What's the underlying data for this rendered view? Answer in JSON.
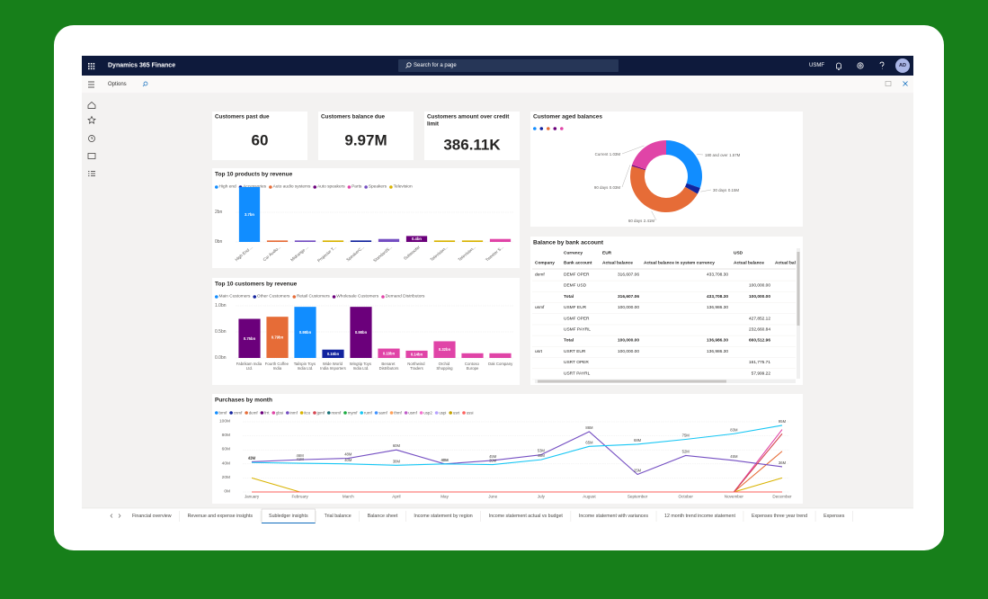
{
  "app": {
    "title": "Dynamics 365 Finance",
    "search": "Search for a page",
    "company": "USMF",
    "avatar": "AD",
    "page": "Options"
  },
  "kpis": [
    {
      "label": "Customers past due",
      "value": "60"
    },
    {
      "label": "Customers balance due",
      "value": "9.97M"
    },
    {
      "label": "Customers amount over credit limit",
      "value": "386.11K"
    }
  ],
  "products": {
    "type": "bar",
    "title": "Top 10 products by revenue",
    "legend": [
      {
        "name": "High end",
        "color": "#118dff"
      },
      {
        "name": "Accessories",
        "color": "#12239e"
      },
      {
        "name": "Auto audio systems",
        "color": "#e66c37"
      },
      {
        "name": "Auto speakers",
        "color": "#6b007b"
      },
      {
        "name": "Parts",
        "color": "#e044a7"
      },
      {
        "name": "Speakers",
        "color": "#744ec2"
      },
      {
        "name": "Television",
        "color": "#d9b300"
      }
    ],
    "categories": [
      "High End ...",
      "Car Audio...",
      "Midrange ...",
      "Projector T...",
      "SpeakerC...",
      "StandardS...",
      "Subwoofer",
      "Television...",
      "Television...",
      "Tweeter S..."
    ],
    "values": [
      3.7,
      0.1,
      0.1,
      0.1,
      0.1,
      0.2,
      0.4,
      0.1,
      0.1,
      0.2
    ],
    "value_labels": [
      "3.7bn",
      null,
      null,
      null,
      null,
      null,
      "0.4bn",
      null,
      null,
      null
    ],
    "colors": [
      "#118dff",
      "#e66c37",
      "#744ec2",
      "#d9b300",
      "#12239e",
      "#744ec2",
      "#6b007b",
      "#d9b300",
      "#d9b300",
      "#e044a7"
    ],
    "ylim": [
      0,
      4
    ],
    "yticks": [
      {
        "value": 0,
        "label": "0bn"
      },
      {
        "value": 2,
        "label": "2bn"
      }
    ],
    "label_rotation": true
  },
  "customers": {
    "type": "bar",
    "title": "Top 10 customers by revenue",
    "legend": [
      {
        "name": "Main Customers",
        "color": "#118dff"
      },
      {
        "name": "Other Customers",
        "color": "#12239e"
      },
      {
        "name": "Retail Customers",
        "color": "#e66c37"
      },
      {
        "name": "Wholesale Customers",
        "color": "#6b007b"
      },
      {
        "name": "Demand Distributors",
        "color": "#e044a7"
      }
    ],
    "categories": [
      "Fabrikam India Ltd.",
      "Fourth Coffee India",
      "Tailspin Toys India Ltd.",
      "Wide World India Importers",
      "Wingtip Toys India Ltd.",
      "Benaret Distributors",
      "Northwind Traders",
      "Orchid Shopping",
      "Contoso Europe",
      "Oak Company"
    ],
    "values": [
      0.75,
      0.79,
      0.98,
      0.16,
      0.98,
      0.18,
      0.14,
      0.32,
      0.09,
      0.09
    ],
    "value_labels": [
      "0.75bn",
      "0.79bn",
      "0.98bn",
      "0.16bn",
      "0.98bn",
      "0.18bn",
      "0.14bn",
      "0.32bn",
      null,
      null
    ],
    "colors": [
      "#6b007b",
      "#e66c37",
      "#118dff",
      "#12239e",
      "#6b007b",
      "#e044a7",
      "#e044a7",
      "#e044a7",
      "#e044a7",
      "#e044a7"
    ],
    "ylim": [
      0,
      1
    ],
    "yticks": [
      {
        "value": 0,
        "label": "0.0bn"
      },
      {
        "value": 0.5,
        "label": "0.5bn"
      },
      {
        "value": 1,
        "label": "1.0bn"
      }
    ],
    "label_rotation": false
  },
  "aged": {
    "type": "donut",
    "title": "Customer aged balances",
    "categories": [
      "180 and over",
      "30 days",
      "60 days",
      "90 days",
      "Current"
    ],
    "values": [
      1.57,
      0.15,
      2.41,
      0.03,
      1.03
    ],
    "value_labels": [
      "1.57M",
      "0.15M",
      "2.41M",
      "0.03M",
      "1.03M"
    ],
    "colors": [
      "#118dff",
      "#12239e",
      "#e66c37",
      "#6b007b",
      "#e044a7"
    ]
  },
  "bank": {
    "title": "Balance by bank account",
    "header_top": [
      "Currency",
      "EUR",
      "USD"
    ],
    "header": [
      "Company",
      "Bank account",
      "Actual balance",
      "Actual balance in system currency",
      "Actual balance",
      "Actual bal"
    ],
    "rows": [
      {
        "cells": [
          "demf",
          "DEMF OPER",
          "316,607.06",
          "433,708.30",
          null
        ]
      },
      {
        "cells": [
          null,
          "DEMF USD",
          null,
          null,
          "100,000.00"
        ]
      },
      {
        "cells": [
          null,
          "Total",
          "316,607.06",
          "433,708.30",
          "100,000.00"
        ],
        "style": "bold"
      },
      {
        "cells": [
          "usmf",
          "USMF EUR",
          "100,000.00",
          "136,986.30",
          null
        ]
      },
      {
        "cells": [
          null,
          "USMF OPER",
          null,
          null,
          "427,852.12"
        ]
      },
      {
        "cells": [
          null,
          "USMF PAYRL",
          null,
          null,
          "232,660.84"
        ]
      },
      {
        "cells": [
          null,
          "Total",
          "100,000.00",
          "136,986.30",
          "660,512.96"
        ],
        "style": "bold"
      },
      {
        "cells": [
          "usrt",
          "USRT EUR",
          "100,000.00",
          "136,986.30",
          null
        ]
      },
      {
        "cells": [
          null,
          "USRT OPER",
          null,
          null,
          "161,775.71"
        ]
      },
      {
        "cells": [
          null,
          "USRT PAYRL",
          null,
          null,
          "57,999.22"
        ]
      }
    ]
  },
  "purchases": {
    "type": "line",
    "title": "Purchases by month",
    "categories": [
      "January",
      "February",
      "March",
      "April",
      "May",
      "June",
      "July",
      "August",
      "September",
      "October",
      "November",
      "December"
    ],
    "ylim": [
      0,
      100
    ],
    "yticks": [
      {
        "value": 0,
        "label": "0M"
      },
      {
        "value": 20,
        "label": "20M"
      },
      {
        "value": 40,
        "label": "40M"
      },
      {
        "value": 60,
        "label": "60M"
      },
      {
        "value": 80,
        "label": "80M"
      },
      {
        "value": 100,
        "label": "100M"
      }
    ],
    "series": [
      {
        "name": "brmf",
        "color": "#118dff",
        "values": [
          0,
          0,
          0,
          0,
          0,
          0,
          0,
          0,
          0,
          0,
          0,
          0
        ]
      },
      {
        "name": "cnmf",
        "color": "#12239e",
        "values": [
          0,
          0,
          0,
          0,
          0,
          0,
          0,
          0,
          0,
          0,
          0,
          0
        ]
      },
      {
        "name": "demf",
        "color": "#e66c37",
        "values": [
          0,
          0,
          0,
          0,
          0,
          0,
          0,
          0,
          0,
          0,
          0,
          58
        ]
      },
      {
        "name": "frrt",
        "color": "#6b007b",
        "values": [
          0,
          0,
          0,
          0,
          0,
          0,
          0,
          0,
          0,
          0,
          0,
          0
        ]
      },
      {
        "name": "gbsi",
        "color": "#e044a7",
        "values": [
          0,
          0,
          0,
          0,
          0,
          0,
          0,
          0,
          0,
          0,
          0,
          89
        ]
      },
      {
        "name": "inmf",
        "color": "#744ec2",
        "values": [
          43,
          46,
          48,
          60,
          40,
          45,
          53,
          86,
          25,
          52,
          45,
          36
        ],
        "value_labels": [
          "43M",
          "46M",
          "48M",
          "60M",
          "40M",
          "45M",
          "53M",
          "86M",
          "25M",
          "52M",
          "45M",
          "36M"
        ]
      },
      {
        "name": "itco",
        "color": "#d9b300",
        "values": [
          20,
          0,
          0,
          0,
          0,
          0,
          0,
          0,
          0,
          0,
          0,
          20
        ]
      },
      {
        "name": "jpmf",
        "color": "#d64550",
        "values": [
          0,
          0,
          0,
          0,
          0,
          0,
          0,
          0,
          0,
          0,
          0,
          83
        ]
      },
      {
        "name": "mxmf",
        "color": "#197278",
        "values": [
          0,
          0,
          0,
          0,
          0,
          0,
          0,
          0,
          0,
          0,
          0,
          0
        ]
      },
      {
        "name": "mymf",
        "color": "#1aab40",
        "values": [
          0,
          0,
          0,
          0,
          0,
          0,
          0,
          0,
          0,
          0,
          0,
          0
        ]
      },
      {
        "name": "rumf",
        "color": "#15c6f4",
        "values": [
          42,
          41,
          40,
          38,
          40,
          39,
          46,
          65,
          68,
          75,
          83,
          95
        ],
        "value_labels": [
          "42M",
          "41M",
          "40M",
          "38M",
          "40M",
          "39M",
          "46M",
          "65M",
          "68M",
          "75M",
          "83M",
          "95M"
        ]
      },
      {
        "name": "samf",
        "color": "#4092ff",
        "values": [
          0,
          0,
          0,
          0,
          0,
          0,
          0,
          0,
          0,
          0,
          0,
          0
        ]
      },
      {
        "name": "thmf",
        "color": "#ffa058",
        "values": [
          0,
          0,
          0,
          0,
          0,
          0,
          0,
          0,
          0,
          0,
          0,
          0
        ]
      },
      {
        "name": "usmf",
        "color": "#be5dc9",
        "values": [
          0,
          0,
          0,
          0,
          0,
          0,
          0,
          0,
          0,
          0,
          0,
          0
        ]
      },
      {
        "name": "usp2",
        "color": "#f472d0",
        "values": [
          0,
          0,
          0,
          0,
          0,
          0,
          0,
          0,
          0,
          0,
          0,
          0
        ]
      },
      {
        "name": "uspi",
        "color": "#b5a1ff",
        "values": [
          0,
          0,
          0,
          0,
          0,
          0,
          0,
          0,
          0,
          0,
          0,
          0
        ]
      },
      {
        "name": "usrt",
        "color": "#c4a200",
        "values": [
          0,
          0,
          0,
          0,
          0,
          0,
          0,
          0,
          0,
          0,
          0,
          0
        ]
      },
      {
        "name": "ussi",
        "color": "#fd625e",
        "values": [
          0,
          0,
          0,
          0,
          0,
          0,
          0,
          0,
          0,
          0,
          0,
          0
        ]
      }
    ]
  },
  "tabs": {
    "items": [
      "Financial overview",
      "Revenue and expense insights",
      "Subledger insights",
      "Trial balance",
      "Balance sheet",
      "Income statement by region",
      "Income statement actual vs budget",
      "Income statement with variances",
      "12 month trend income statement",
      "Expenses three year trend",
      "Expenses"
    ],
    "active": 2
  }
}
